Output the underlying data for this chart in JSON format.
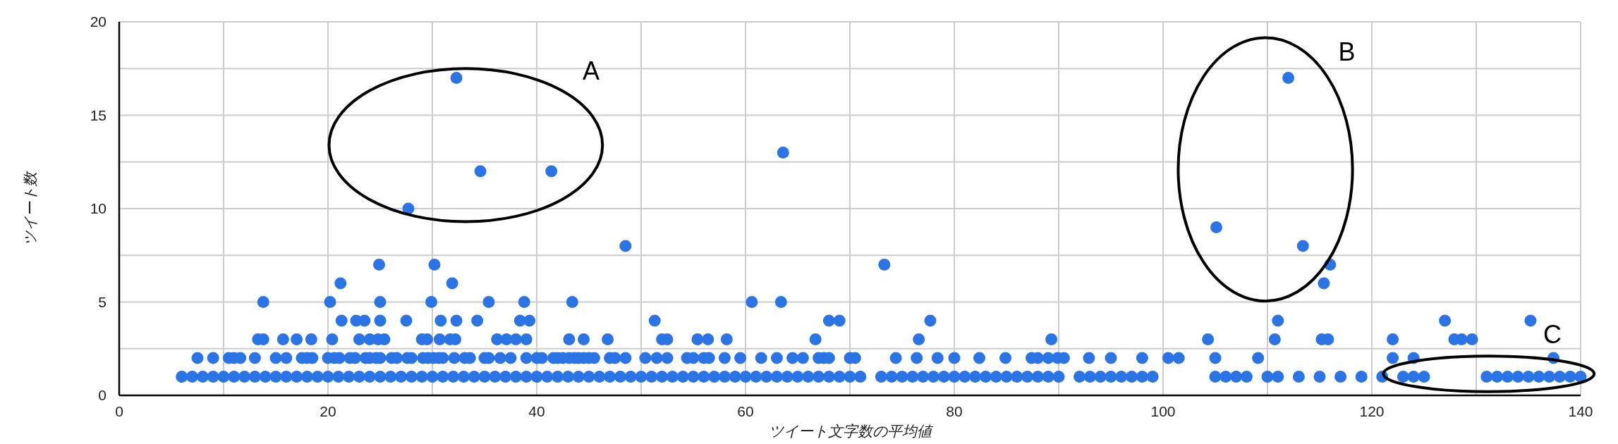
{
  "chart_data": {
    "type": "scatter",
    "xlabel": "ツイート文字数の平均値",
    "ylabel": "ツイート数",
    "xlim": [
      0,
      140
    ],
    "ylim": [
      0,
      20
    ],
    "xticks": [
      0,
      {
        "value": 10,
        "label": null
      },
      20,
      {
        "value": 30,
        "label": null
      },
      40,
      {
        "value": 50,
        "label": null
      },
      60,
      {
        "value": 70,
        "label": null
      },
      80,
      {
        "value": 90,
        "label": null
      },
      100,
      {
        "value": 110,
        "label": null
      },
      120,
      {
        "value": 130,
        "label": null
      },
      140
    ],
    "yticks": [
      0,
      {
        "value": 2.5,
        "label": null
      },
      5,
      {
        "value": 7.5,
        "label": null
      },
      10,
      {
        "value": 12.5,
        "label": null
      },
      15,
      {
        "value": 17.5,
        "label": null
      },
      20
    ],
    "grid": true,
    "marker": "circle",
    "annotations": [
      "A",
      "B",
      "C"
    ],
    "series": [
      {
        "color": "#2b74e6",
        "x": [
          6,
          7,
          8,
          9,
          10,
          11,
          12,
          13,
          14,
          15,
          16,
          17,
          18,
          19,
          20,
          21,
          22,
          23,
          24,
          25,
          26,
          27,
          28,
          29,
          30,
          31,
          32,
          33,
          34,
          35,
          36,
          37,
          38,
          39,
          40,
          41,
          42,
          43,
          44,
          45,
          46,
          47,
          48,
          49,
          50,
          51,
          52,
          53,
          54,
          55,
          56,
          57,
          58,
          59,
          60,
          61,
          62,
          63,
          64,
          65,
          66,
          67,
          68,
          69,
          70,
          71,
          73,
          74,
          75,
          76,
          77,
          78,
          79,
          80,
          81,
          82,
          83,
          84,
          85,
          86,
          87,
          88,
          89,
          90,
          92,
          93,
          94,
          95,
          96,
          97,
          98,
          99,
          105,
          106,
          107,
          108,
          110,
          111,
          113,
          115,
          117,
          119,
          121,
          123,
          124,
          125,
          131,
          132,
          133,
          134,
          135,
          136,
          137,
          138,
          139,
          140,
          7.5,
          9,
          10.5,
          11,
          11.6,
          13,
          15,
          16,
          17.5,
          18,
          18.5,
          20,
          20.6,
          21.1,
          22.1,
          22.6,
          23.6,
          24,
          24.6,
          25,
          26.1,
          26.6,
          27.6,
          28,
          29.1,
          29.6,
          30.1,
          30.6,
          31,
          32.1,
          33.1,
          33.6,
          35,
          35.4,
          36.5,
          37.5,
          39,
          40,
          40.5,
          41.6,
          42,
          42.5,
          43.1,
          43.6,
          44,
          44.5,
          45,
          45.5,
          47,
          47.5,
          48.5,
          50.4,
          51.5,
          52.5,
          54.4,
          55,
          56,
          56.5,
          58,
          59.5,
          61.5,
          63,
          64.5,
          65.5,
          67,
          67.5,
          68,
          70,
          70.5,
          74.4,
          76.4,
          78.4,
          80,
          82.4,
          84.9,
          87.4,
          88,
          89,
          89.9,
          90.5,
          92.9,
          95,
          98,
          100.5,
          101.5,
          105,
          109.1,
          122,
          124,
          137.4,
          13.3,
          13.8,
          15.7,
          17,
          18.4,
          20.4,
          23,
          24,
          24.8,
          25.4,
          29,
          29.5,
          30.7,
          31.7,
          32.2,
          36.2,
          37.1,
          38,
          39,
          43.1,
          44.5,
          46.8,
          52,
          52.5,
          55.4,
          56.4,
          58.2,
          66.7,
          76.6,
          89.3,
          104.3,
          110.7,
          115.2,
          115.8,
          122,
          127.9,
          128.6,
          129.6,
          21.3,
          22.7,
          23.5,
          25,
          27.5,
          30.8,
          32.3,
          34.3,
          38.4,
          39.3,
          51.3,
          68,
          69,
          77.7,
          111,
          127,
          135.2,
          13.8,
          20.2,
          25,
          29.9,
          35.4,
          38.8,
          43.4,
          60.6,
          63.4,
          21.2,
          31.9,
          115.4,
          24.9,
          30.2,
          73.3,
          116,
          48.5,
          113.4,
          105.1,
          27.7,
          34.6,
          41.4,
          63.6,
          32.3,
          112
        ],
        "values": [
          1,
          1,
          1,
          1,
          1,
          1,
          1,
          1,
          1,
          1,
          1,
          1,
          1,
          1,
          1,
          1,
          1,
          1,
          1,
          1,
          1,
          1,
          1,
          1,
          1,
          1,
          1,
          1,
          1,
          1,
          1,
          1,
          1,
          1,
          1,
          1,
          1,
          1,
          1,
          1,
          1,
          1,
          1,
          1,
          1,
          1,
          1,
          1,
          1,
          1,
          1,
          1,
          1,
          1,
          1,
          1,
          1,
          1,
          1,
          1,
          1,
          1,
          1,
          1,
          1,
          1,
          1,
          1,
          1,
          1,
          1,
          1,
          1,
          1,
          1,
          1,
          1,
          1,
          1,
          1,
          1,
          1,
          1,
          1,
          1,
          1,
          1,
          1,
          1,
          1,
          1,
          1,
          1,
          1,
          1,
          1,
          1,
          1,
          1,
          1,
          1,
          1,
          1,
          1,
          1,
          1,
          1,
          1,
          1,
          1,
          1,
          1,
          1,
          1,
          1,
          1,
          2,
          2,
          2,
          2,
          2,
          2,
          2,
          2,
          2,
          2,
          2,
          2,
          2,
          2,
          2,
          2,
          2,
          2,
          2,
          2,
          2,
          2,
          2,
          2,
          2,
          2,
          2,
          2,
          2,
          2,
          2,
          2,
          2,
          2,
          2,
          2,
          2,
          2,
          2,
          2,
          2,
          2,
          2,
          2,
          2,
          2,
          2,
          2,
          2,
          2,
          2,
          2,
          2,
          2,
          2,
          2,
          2,
          2,
          2,
          2,
          2,
          2,
          2,
          2,
          2,
          2,
          2,
          2,
          2,
          2,
          2,
          2,
          2,
          2,
          2,
          2,
          2,
          2,
          2,
          2,
          2,
          2,
          2,
          2,
          2,
          2,
          2,
          2,
          2,
          2,
          3,
          3,
          3,
          3,
          3,
          3,
          3,
          3,
          3,
          3,
          3,
          3,
          3,
          3,
          3,
          3,
          3,
          3,
          3,
          3,
          3,
          3,
          3,
          3,
          3,
          3,
          3,
          3,
          3,
          3,
          3,
          3,
          3,
          3,
          3,
          3,
          3,
          3,
          4,
          4,
          4,
          4,
          4,
          4,
          4,
          4,
          4,
          4,
          4,
          4,
          4,
          4,
          4,
          4,
          4,
          5,
          5,
          5,
          5,
          5,
          5,
          5,
          5,
          5,
          6,
          6,
          6,
          7,
          7,
          7,
          7,
          8,
          8,
          9,
          10,
          12,
          12,
          13,
          17,
          17
        ]
      }
    ]
  }
}
